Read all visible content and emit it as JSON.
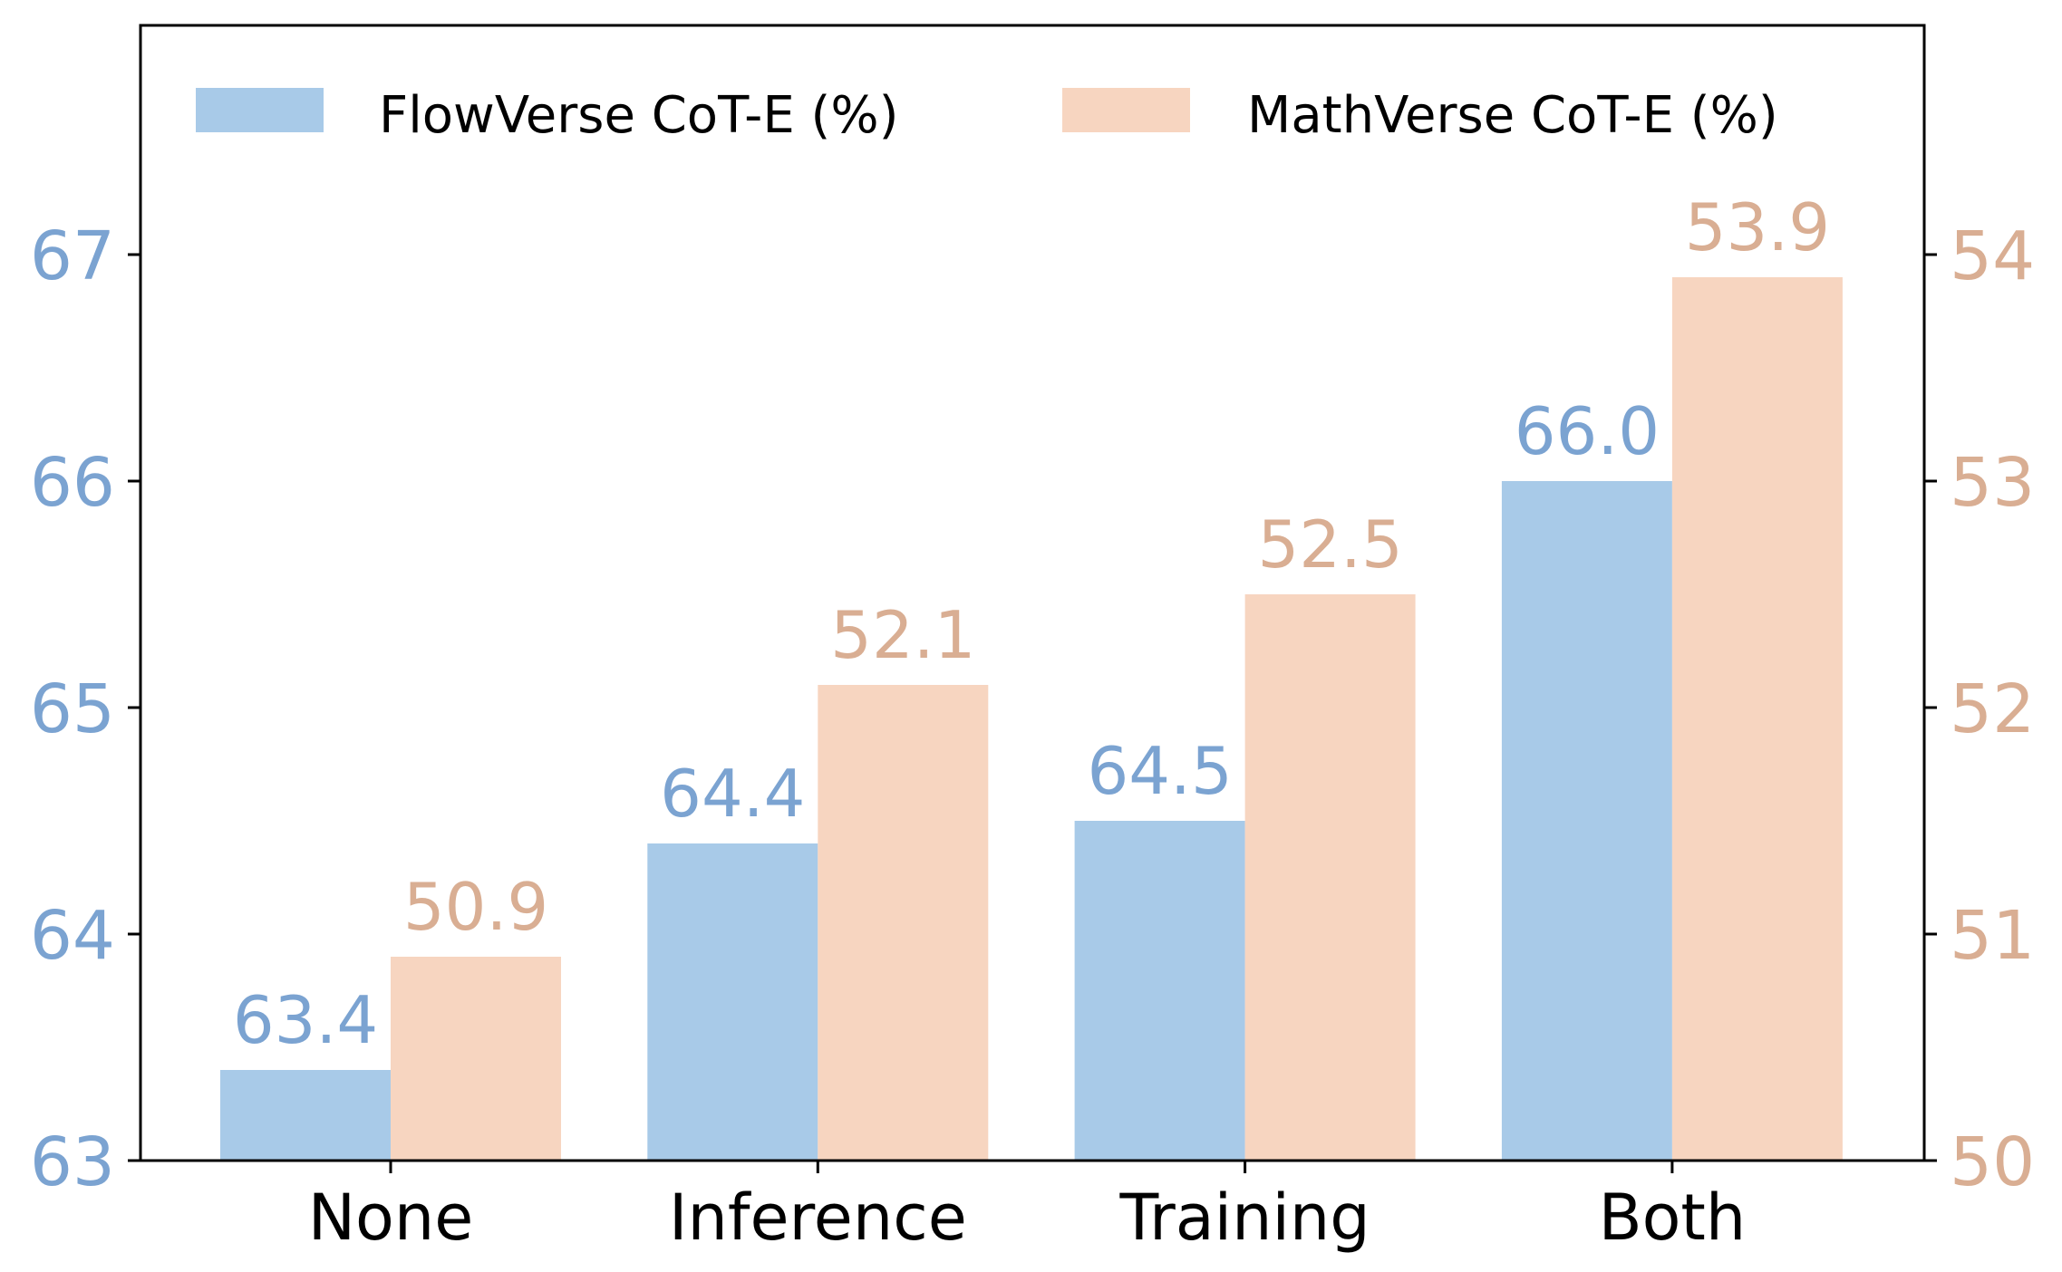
{
  "chart_data": {
    "type": "bar",
    "title": "",
    "xlabel": "",
    "ylabel": "",
    "categories": [
      "None",
      "Inference",
      "Training",
      "Both"
    ],
    "series": [
      {
        "name": "FlowVerse CoT-E (%)",
        "axis": "left",
        "color": "#A8CAE8",
        "label_color": "#7BA3D1",
        "values": [
          63.4,
          64.4,
          64.5,
          66.0
        ],
        "value_labels": [
          "63.4",
          "64.4",
          "64.5",
          "66.0"
        ]
      },
      {
        "name": "MathVerse CoT-E (%)",
        "axis": "right",
        "color": "#F7D5C0",
        "label_color": "#D9AE93",
        "values": [
          50.9,
          52.1,
          52.5,
          53.9
        ],
        "value_labels": [
          "50.9",
          "52.1",
          "52.5",
          "53.9"
        ]
      }
    ],
    "left_axis": {
      "ylim": [
        63,
        68
      ],
      "ticks": [
        "63",
        "64",
        "65",
        "66",
        "67"
      ],
      "color": "#7BA3D1"
    },
    "right_axis": {
      "ylim": [
        50,
        55
      ],
      "ticks": [
        "50",
        "51",
        "52",
        "53",
        "54"
      ],
      "color": "#D9AE93"
    },
    "grid": false,
    "legend": {
      "position": "upper center",
      "ncol": 2,
      "frame": false
    }
  }
}
